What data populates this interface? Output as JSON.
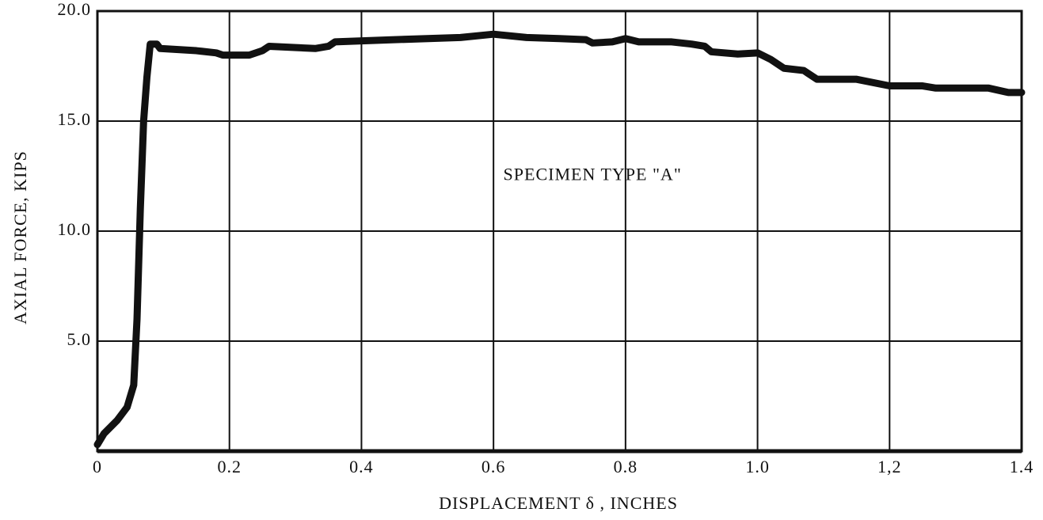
{
  "chart_data": {
    "type": "line",
    "xlabel": "DISPLACEMENT δ , INCHES",
    "ylabel": "AXIAL FORCE, KIPS",
    "annotation": "SPECIMEN TYPE \"A\"",
    "xlim": [
      0,
      1.4
    ],
    "ylim": [
      0,
      20
    ],
    "xticks": [
      0,
      0.2,
      0.4,
      0.6,
      0.8,
      {
        "value": 1.0,
        "label": "1.0"
      },
      {
        "value": 1.2,
        "label": "1,2"
      },
      1.4
    ],
    "yticks": [
      {
        "value": 5,
        "label": "5.0"
      },
      {
        "value": 10,
        "label": "10.0"
      },
      {
        "value": 15,
        "label": "15.0"
      },
      {
        "value": 20,
        "label": "20.0"
      }
    ],
    "grid": true,
    "series": [
      {
        "color": "#111111",
        "x": [
          0,
          0.01,
          0.03,
          0.045,
          0.055,
          0.06,
          0.065,
          0.07,
          0.075,
          0.08,
          0.09,
          0.095,
          0.15,
          0.18,
          0.19,
          0.23,
          0.25,
          0.26,
          0.33,
          0.35,
          0.36,
          0.45,
          0.55,
          0.6,
          0.65,
          0.7,
          0.74,
          0.75,
          0.78,
          0.8,
          0.82,
          0.87,
          0.9,
          0.92,
          0.93,
          0.97,
          1.0,
          1.02,
          1.04,
          1.07,
          1.09,
          1.15,
          1.2,
          1.25,
          1.27,
          1.35,
          1.38,
          1.4
        ],
        "values": [
          0.3,
          0.8,
          1.4,
          2.0,
          3.0,
          6,
          11,
          15,
          17,
          18.5,
          18.5,
          18.3,
          18.2,
          18.1,
          18.0,
          18.0,
          18.2,
          18.4,
          18.3,
          18.4,
          18.6,
          18.7,
          18.8,
          18.95,
          18.8,
          18.75,
          18.7,
          18.55,
          18.6,
          18.75,
          18.6,
          18.6,
          18.5,
          18.4,
          18.15,
          18.05,
          18.1,
          17.8,
          17.4,
          17.3,
          16.9,
          16.9,
          16.6,
          16.6,
          16.5,
          16.5,
          16.3,
          16.3
        ]
      }
    ]
  }
}
